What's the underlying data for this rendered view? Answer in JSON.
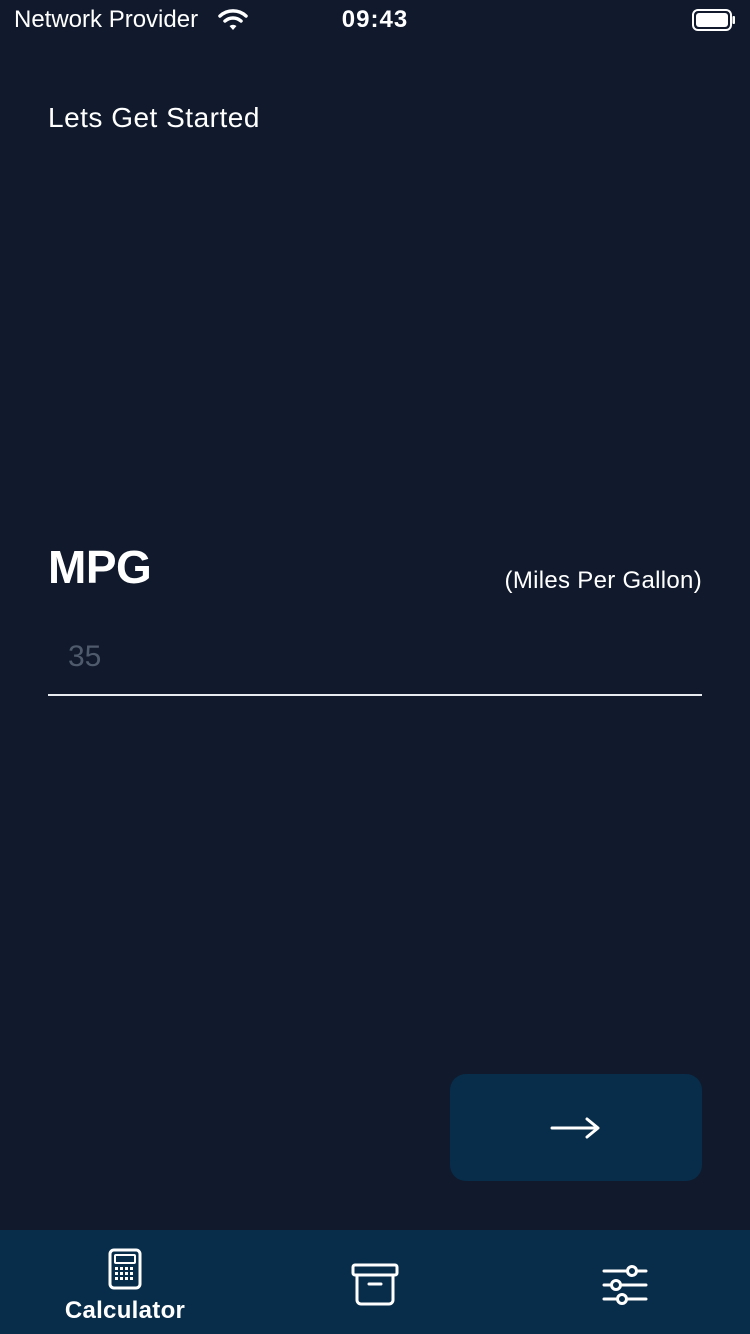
{
  "status_bar": {
    "carrier": "Network Provider",
    "time": "09:43"
  },
  "intro": {
    "heading": "Lets Get Started"
  },
  "mpg": {
    "title": "MPG",
    "subtitle": "(Miles Per Gallon)",
    "placeholder": "35",
    "value": ""
  },
  "actions": {
    "next_icon": "arrow-right-icon"
  },
  "tab_bar": {
    "tabs": [
      {
        "label": "Calculator",
        "icon": "calculator-icon",
        "active": true
      },
      {
        "label": "",
        "icon": "archive-box-icon",
        "active": false
      },
      {
        "label": "",
        "icon": "sliders-icon",
        "active": false
      }
    ]
  },
  "colors": {
    "background": "#101a2c",
    "accent_surface": "#082d4a",
    "text": "#ffffff",
    "placeholder": "#4f5b6d"
  }
}
